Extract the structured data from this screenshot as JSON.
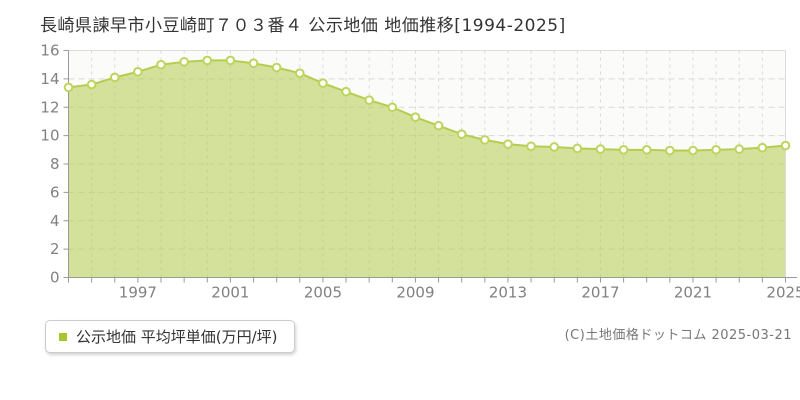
{
  "title": "長崎県諫早市小豆崎町７０３番４ 公示地価 地価推移[1994-2025]",
  "legend": {
    "marker_color": "#a6c72b",
    "label": "公示地価 平均坪単価(万円/坪)"
  },
  "copyright": "(C)土地価格ドットコム 2025-03-21",
  "chart_data": {
    "type": "area",
    "title": "長崎県諫早市小豆崎町７０３番４ 公示地価 地価推移[1994-2025]",
    "xlabel": "",
    "ylabel": "平均坪単価(万円/坪)",
    "x": [
      1994,
      1995,
      1996,
      1997,
      1998,
      1999,
      2000,
      2001,
      2002,
      2003,
      2004,
      2005,
      2006,
      2007,
      2008,
      2009,
      2010,
      2011,
      2012,
      2013,
      2014,
      2015,
      2016,
      2017,
      2018,
      2019,
      2020,
      2021,
      2022,
      2023,
      2024,
      2025
    ],
    "series": [
      {
        "name": "公示地価 平均坪単価(万円/坪)",
        "values": [
          13.4,
          13.6,
          14.1,
          14.5,
          15.0,
          15.2,
          15.3,
          15.3,
          15.1,
          14.8,
          14.4,
          13.7,
          13.1,
          12.5,
          12.0,
          11.3,
          10.7,
          10.1,
          9.7,
          9.4,
          9.25,
          9.2,
          9.1,
          9.05,
          9.0,
          9.0,
          8.95,
          8.95,
          9.0,
          9.05,
          9.15,
          9.3
        ]
      }
    ],
    "ylim": [
      0,
      16
    ],
    "ytick_step": 2,
    "ytick_labels": [
      "0",
      "2",
      "4",
      "6",
      "8",
      "10",
      "12",
      "14",
      "16"
    ],
    "xtick_labels": [
      "1997",
      "2001",
      "2005",
      "2009",
      "2013",
      "2017",
      "2021",
      "2025"
    ],
    "grid": true,
    "legend_position": "bottom-left",
    "colors": {
      "line": "#b5cc4e",
      "marker_stroke": "#bfd45e",
      "marker_fill": "#ffffff",
      "fill_rgba": "rgba(181,204,78,0.55)",
      "plot_bg": "#fbfbf9",
      "grid": "#d9d9d9",
      "border": "#dcdcdc",
      "axis": "#999999",
      "tick_label": "#818181"
    }
  }
}
